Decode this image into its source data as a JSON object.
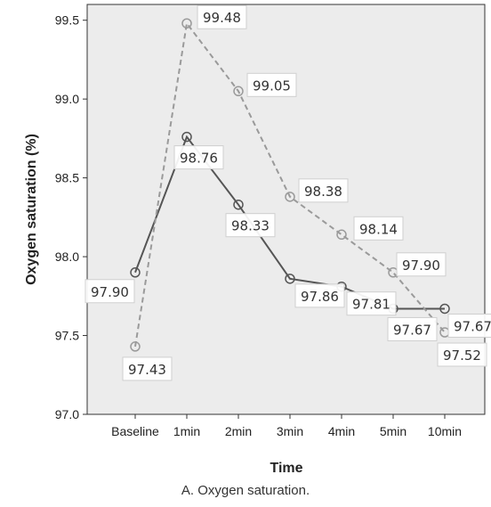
{
  "chart_data": {
    "type": "line",
    "categories": [
      "Baseline",
      "1min",
      "2min",
      "3min",
      "4min",
      "5min",
      "10min"
    ],
    "series": [
      {
        "style": "solid",
        "color": "#555555",
        "values": [
          97.9,
          98.76,
          98.33,
          97.86,
          97.81,
          97.67,
          97.67
        ],
        "labels": [
          "97.90",
          "98.76",
          "98.33",
          "97.86",
          "97.81",
          "97.67",
          "97.67"
        ]
      },
      {
        "style": "dashed",
        "color": "#9a9a9a",
        "values": [
          97.43,
          99.48,
          99.05,
          98.38,
          98.14,
          97.9,
          97.52
        ],
        "labels": [
          "97.43",
          "99.48",
          "99.05",
          "98.38",
          "98.14",
          "97.90",
          "97.52"
        ]
      }
    ],
    "xlabel": "Time",
    "ylabel": "Oxygen saturation (%)",
    "ylim": [
      97.0,
      99.6
    ],
    "yticks": [
      "97.0",
      "97.5",
      "98.0",
      "98.5",
      "99.0",
      "99.5"
    ],
    "plot_background": "#ececec",
    "grid": false
  },
  "caption": "A. Oxygen saturation."
}
